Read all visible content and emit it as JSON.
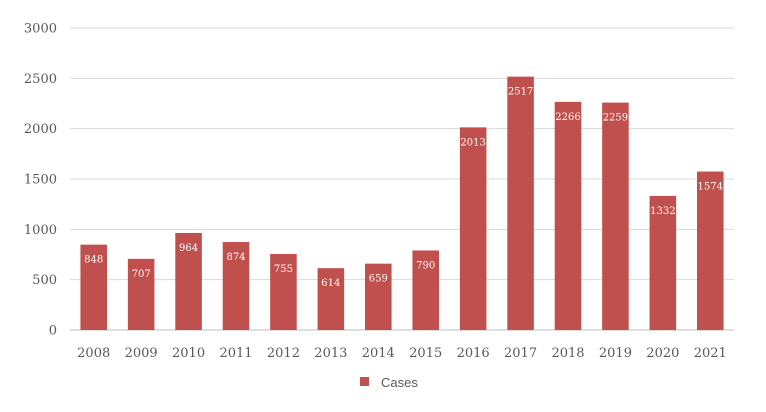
{
  "chart_data": {
    "type": "bar",
    "categories": [
      "2008",
      "2009",
      "2010",
      "2011",
      "2012",
      "2013",
      "2014",
      "2015",
      "2016",
      "2017",
      "2018",
      "2019",
      "2020",
      "2021"
    ],
    "series": [
      {
        "name": "Cases",
        "values": [
          848,
          707,
          964,
          874,
          755,
          614,
          659,
          790,
          2013,
          2517,
          2266,
          2259,
          1332,
          1574
        ]
      }
    ],
    "ylim": [
      0,
      3000
    ],
    "yticks": [
      0,
      500,
      1000,
      1500,
      2000,
      2500,
      3000
    ],
    "grid": true,
    "legend_position": "bottom",
    "data_labels": true,
    "colors": {
      "bar": "#c0504d",
      "grid": "#d9d9d9",
      "text": "#595959",
      "label": "#ffffff"
    }
  },
  "legend": {
    "label": "Cases"
  }
}
